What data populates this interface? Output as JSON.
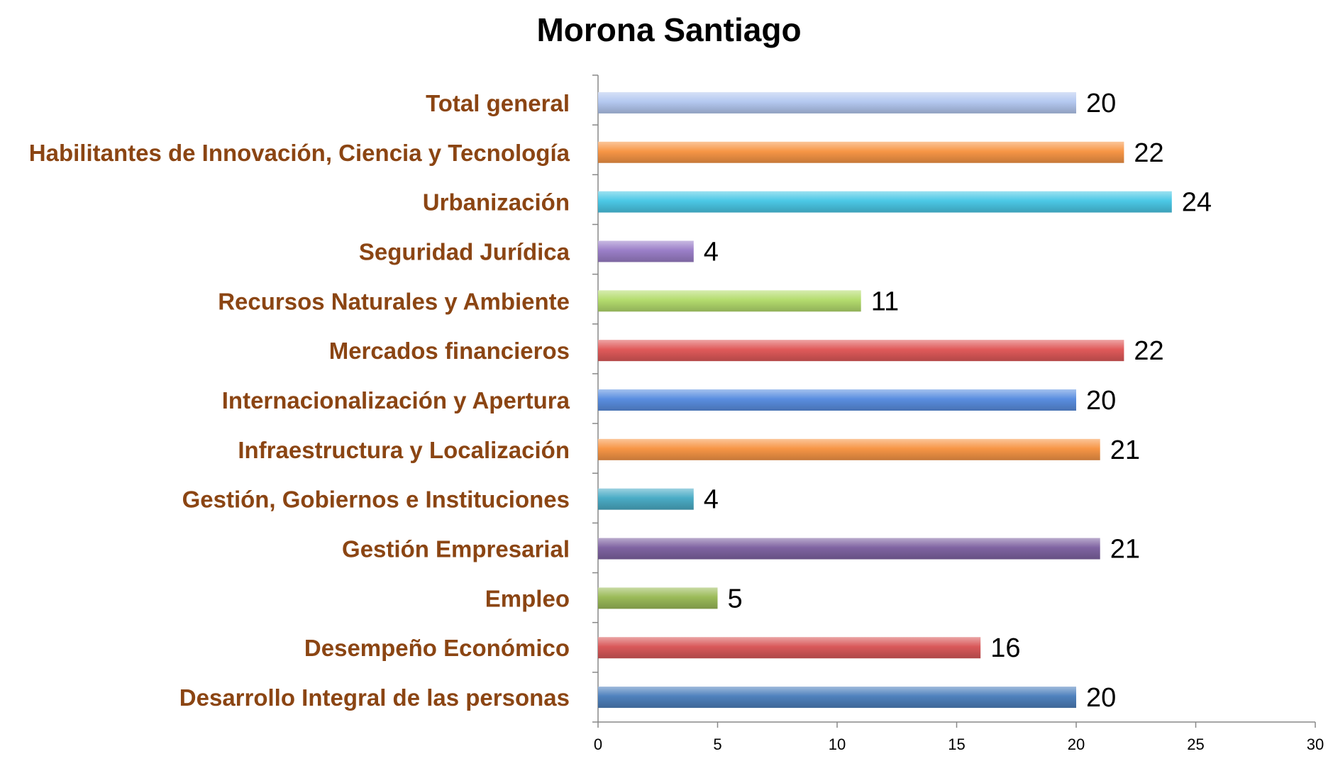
{
  "chart_data": {
    "type": "bar",
    "orientation": "horizontal",
    "title": "Morona Santiago",
    "xlabel": "",
    "ylabel": "",
    "xlim": [
      0,
      30
    ],
    "x_ticks": [
      "0",
      "5",
      "10",
      "15",
      "20",
      "25",
      "30"
    ],
    "grid": false,
    "legend": "none",
    "categories": [
      "Total general",
      "Habilitantes de Innovación, Ciencia y Tecnología",
      "Urbanización",
      "Seguridad Jurídica",
      "Recursos Naturales y Ambiente",
      "Mercados financieros",
      "Internacionalización y Apertura",
      "Infraestructura y Localización",
      "Gestión, Gobiernos e Instituciones",
      "Gestión Empresarial",
      "Empleo",
      "Desempeño Económico",
      "Desarrollo Integral de las personas"
    ],
    "values": [
      20,
      22,
      24,
      4,
      11,
      22,
      20,
      21,
      4,
      21,
      5,
      16,
      20
    ],
    "data_labels": [
      "20",
      "22",
      "24",
      "4",
      "11",
      "22",
      "20",
      "21",
      "4",
      "21",
      "5",
      "16",
      "20"
    ],
    "colors": [
      "#b4c8f0",
      "#f79646",
      "#4bc8e6",
      "#9b7fc8",
      "#b4dc6e",
      "#e05a5a",
      "#5a8ee0",
      "#f79646",
      "#4bacc6",
      "#8064a2",
      "#9bbb59",
      "#d9595a",
      "#4f81bd"
    ],
    "label_color": "#8b4513"
  }
}
